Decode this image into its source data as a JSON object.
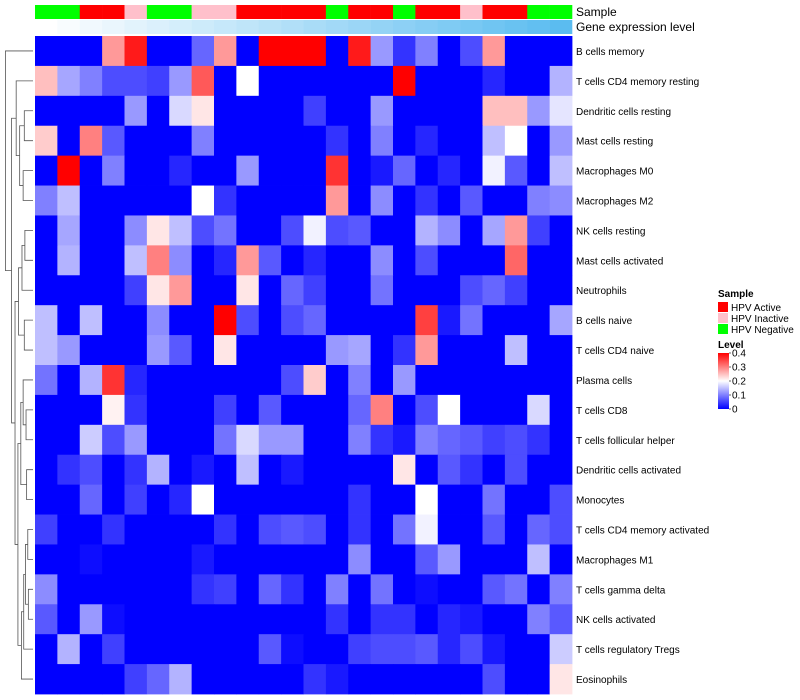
{
  "chart_data": {
    "type": "heatmap",
    "title": "",
    "annotation_labels": {
      "sample": "Sample",
      "expression": "Gene expression level"
    },
    "sample_annotation": [
      "HPV Negative",
      "HPV Negative",
      "HPV Active",
      "HPV Active",
      "HPV Inactive",
      "HPV Negative",
      "HPV Negative",
      "HPV Inactive",
      "HPV Inactive",
      "HPV Active",
      "HPV Active",
      "HPV Active",
      "HPV Active",
      "HPV Negative",
      "HPV Active",
      "HPV Active",
      "HPV Negative",
      "HPV Active",
      "HPV Active",
      "HPV Inactive",
      "HPV Active",
      "HPV Active",
      "HPV Negative",
      "HPV Negative"
    ],
    "expression_gradient": {
      "start": "#ffffff",
      "end": "#5bbcf0"
    },
    "rows": [
      "B cells memory",
      "T cells CD4 memory resting",
      "Dendritic cells resting",
      "Mast cells resting",
      "Macrophages M0",
      "Macrophages M2",
      "NK cells resting",
      "Mast cells activated",
      "Neutrophils",
      "B cells naive",
      "T cells CD4 naive",
      "Plasma cells",
      "T cells CD8",
      "T cells follicular helper",
      "Dendritic cells activated",
      "Monocytes",
      "T cells CD4 memory activated",
      "Macrophages M1",
      "T cells gamma delta",
      "NK cells activated",
      "T cells regulatory  Tregs",
      "Eosinophils"
    ],
    "values": [
      [
        0.0,
        0.0,
        0.0,
        0.28,
        0.38,
        0.0,
        0.0,
        0.08,
        0.28,
        0.0,
        0.4,
        0.4,
        0.4,
        0.0,
        0.38,
        0.12,
        0.04,
        0.1,
        0.0,
        0.06,
        0.28,
        0.0,
        0.0,
        0.0
      ],
      [
        0.25,
        0.13,
        0.1,
        0.06,
        0.06,
        0.05,
        0.12,
        0.33,
        0.0,
        0.2,
        0.0,
        0.0,
        0.0,
        0.0,
        0.0,
        0.0,
        0.4,
        0.0,
        0.0,
        0.0,
        0.03,
        0.0,
        0.0,
        0.14
      ],
      [
        0.0,
        0.0,
        0.0,
        0.0,
        0.12,
        0.0,
        0.17,
        0.22,
        0.0,
        0.0,
        0.0,
        0.0,
        0.05,
        0.0,
        0.0,
        0.12,
        0.0,
        0.0,
        0.0,
        0.0,
        0.25,
        0.25,
        0.12,
        0.18
      ],
      [
        0.24,
        0.0,
        0.3,
        0.07,
        0.0,
        0.0,
        0.0,
        0.1,
        0.0,
        0.0,
        0.0,
        0.0,
        0.0,
        0.04,
        0.0,
        0.1,
        0.0,
        0.03,
        0.0,
        0.0,
        0.15,
        0.2,
        0.0,
        0.12
      ],
      [
        0.0,
        0.4,
        0.0,
        0.1,
        0.0,
        0.0,
        0.03,
        0.0,
        0.0,
        0.12,
        0.0,
        0.0,
        0.0,
        0.36,
        0.0,
        0.02,
        0.08,
        0.0,
        0.03,
        0.0,
        0.19,
        0.07,
        0.0,
        0.15
      ],
      [
        0.1,
        0.15,
        0.0,
        0.0,
        0.0,
        0.0,
        0.0,
        0.2,
        0.04,
        0.0,
        0.0,
        0.0,
        0.0,
        0.28,
        0.0,
        0.11,
        0.0,
        0.04,
        0.0,
        0.07,
        0.0,
        0.0,
        0.1,
        0.11
      ],
      [
        0.0,
        0.13,
        0.0,
        0.0,
        0.11,
        0.22,
        0.15,
        0.06,
        0.09,
        0.0,
        0.0,
        0.06,
        0.19,
        0.06,
        0.07,
        0.0,
        0.0,
        0.14,
        0.11,
        0.0,
        0.13,
        0.28,
        0.05,
        0.0
      ],
      [
        0.0,
        0.14,
        0.0,
        0.0,
        0.15,
        0.3,
        0.11,
        0.0,
        0.03,
        0.28,
        0.07,
        0.0,
        0.03,
        0.0,
        0.0,
        0.11,
        0.0,
        0.06,
        0.0,
        0.0,
        0.0,
        0.32,
        0.0,
        0.0
      ],
      [
        0.0,
        0.0,
        0.0,
        0.0,
        0.05,
        0.22,
        0.28,
        0.0,
        0.0,
        0.22,
        0.0,
        0.08,
        0.05,
        0.0,
        0.0,
        0.09,
        0.0,
        0.0,
        0.0,
        0.06,
        0.08,
        0.05,
        0.0,
        0.0
      ],
      [
        0.15,
        0.0,
        0.15,
        0.0,
        0.0,
        0.11,
        0.0,
        0.0,
        0.4,
        0.06,
        0.0,
        0.06,
        0.08,
        0.0,
        0.0,
        0.0,
        0.0,
        0.35,
        0.02,
        0.09,
        0.0,
        0.0,
        0.0,
        0.13
      ],
      [
        0.15,
        0.12,
        0.0,
        0.0,
        0.0,
        0.12,
        0.07,
        0.0,
        0.22,
        0.0,
        0.0,
        0.0,
        0.0,
        0.12,
        0.13,
        0.0,
        0.04,
        0.28,
        0.0,
        0.0,
        0.0,
        0.15,
        0.0,
        0.0
      ],
      [
        0.09,
        0.0,
        0.14,
        0.36,
        0.03,
        0.0,
        0.0,
        0.0,
        0.0,
        0.0,
        0.0,
        0.06,
        0.24,
        0.0,
        0.1,
        0.0,
        0.12,
        0.0,
        0.0,
        0.0,
        0.0,
        0.0,
        0.0,
        0.0
      ],
      [
        0.0,
        0.0,
        0.0,
        0.21,
        0.04,
        0.0,
        0.0,
        0.0,
        0.05,
        0.0,
        0.07,
        0.0,
        0.0,
        0.0,
        0.08,
        0.3,
        0.0,
        0.06,
        0.2,
        0.0,
        0.0,
        0.0,
        0.17,
        0.0
      ],
      [
        0.0,
        0.0,
        0.16,
        0.06,
        0.12,
        0.0,
        0.0,
        0.0,
        0.09,
        0.17,
        0.12,
        0.12,
        0.0,
        0.0,
        0.1,
        0.04,
        0.02,
        0.1,
        0.08,
        0.07,
        0.05,
        0.06,
        0.04,
        0.0
      ],
      [
        0.0,
        0.04,
        0.06,
        0.0,
        0.04,
        0.14,
        0.0,
        0.02,
        0.0,
        0.15,
        0.0,
        0.02,
        0.0,
        0.0,
        0.0,
        0.0,
        0.22,
        0.0,
        0.07,
        0.04,
        0.0,
        0.06,
        0.0,
        0.0
      ],
      [
        0.0,
        0.0,
        0.08,
        0.0,
        0.05,
        0.0,
        0.03,
        0.2,
        0.0,
        0.0,
        0.0,
        0.0,
        0.0,
        0.0,
        0.04,
        0.0,
        0.0,
        0.2,
        0.0,
        0.0,
        0.09,
        0.0,
        0.0,
        0.06
      ],
      [
        0.05,
        0.0,
        0.0,
        0.04,
        0.0,
        0.0,
        0.0,
        0.0,
        0.04,
        0.0,
        0.06,
        0.07,
        0.06,
        0.0,
        0.04,
        0.0,
        0.09,
        0.19,
        0.0,
        0.0,
        0.07,
        0.0,
        0.08,
        0.06
      ],
      [
        0.0,
        0.0,
        0.01,
        0.0,
        0.0,
        0.0,
        0.0,
        0.02,
        0.0,
        0.0,
        0.0,
        0.0,
        0.0,
        0.0,
        0.11,
        0.0,
        0.0,
        0.07,
        0.12,
        0.0,
        0.0,
        0.0,
        0.15,
        0.0
      ],
      [
        0.11,
        0.0,
        0.0,
        0.0,
        0.0,
        0.0,
        0.0,
        0.04,
        0.05,
        0.0,
        0.08,
        0.04,
        0.0,
        0.1,
        0.0,
        0.09,
        0.0,
        0.01,
        0.0,
        0.0,
        0.07,
        0.09,
        0.0,
        0.1
      ],
      [
        0.07,
        0.0,
        0.12,
        0.01,
        0.0,
        0.0,
        0.0,
        0.0,
        0.0,
        0.0,
        0.0,
        0.0,
        0.0,
        0.04,
        0.0,
        0.04,
        0.04,
        0.0,
        0.03,
        0.02,
        0.0,
        0.0,
        0.1,
        0.07
      ],
      [
        0.0,
        0.14,
        0.0,
        0.05,
        0.0,
        0.0,
        0.0,
        0.0,
        0.0,
        0.0,
        0.07,
        0.01,
        0.0,
        0.0,
        0.05,
        0.06,
        0.06,
        0.07,
        0.03,
        0.06,
        0.02,
        0.0,
        0.0,
        0.16
      ],
      [
        0.0,
        0.0,
        0.0,
        0.0,
        0.05,
        0.08,
        0.14,
        0.0,
        0.0,
        0.0,
        0.0,
        0.0,
        0.04,
        0.02,
        0.0,
        0.0,
        0.0,
        0.0,
        0.0,
        0.0,
        0.06,
        0.0,
        0.0,
        0.22
      ]
    ],
    "color_scale": {
      "min": 0,
      "max": 0.4,
      "low": "#0000ff",
      "mid": "#ffffff",
      "high": "#ff0000"
    },
    "legend": {
      "sample_title": "Sample",
      "sample_items": [
        {
          "label": "HPV Active",
          "color": "#ff0000"
        },
        {
          "label": "HPV Inactive",
          "color": "#ffc0cb"
        },
        {
          "label": "HPV Negative",
          "color": "#00ff00"
        }
      ],
      "level_title": "Level",
      "level_ticks": [
        0.4,
        0.3,
        0.2,
        0.1,
        0
      ],
      "position": "right"
    },
    "dendrogram": "rows-left"
  }
}
